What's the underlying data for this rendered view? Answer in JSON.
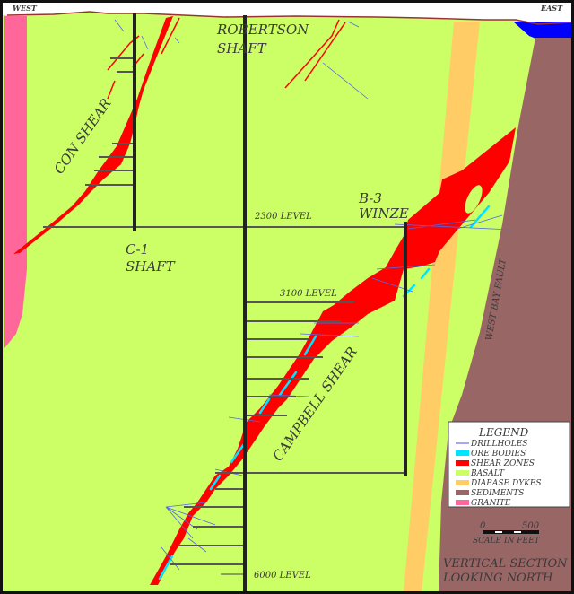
{
  "orientation": {
    "west": "WEST",
    "east": "EAST"
  },
  "shafts": {
    "robertson": [
      "ROBERTSON",
      "SHAFT"
    ],
    "c1": [
      "C-1",
      "SHAFT"
    ],
    "b3": [
      "B-3",
      "WINZE"
    ]
  },
  "shears": {
    "con": "CON SHEAR",
    "campbell": "CAMPBELL SHEAR"
  },
  "fault": "WEST BAY FAULT",
  "levels": {
    "l2300": "2300 LEVEL",
    "l3100": "3100 LEVEL",
    "l6000": "6000 LEVEL"
  },
  "legend": {
    "title": "LEGEND",
    "items": [
      {
        "label": "DRILLHOLES",
        "color": "#8888ee"
      },
      {
        "label": "ORE BODIES",
        "color": "#00e5ff"
      },
      {
        "label": "SHEAR ZONES",
        "color": "#ff0000"
      },
      {
        "label": "BASALT",
        "color": "#ccff66"
      },
      {
        "label": "DIABASE DYKES",
        "color": "#ffcc66"
      },
      {
        "label": "SEDIMENTS",
        "color": "#996666"
      },
      {
        "label": "GRANITE",
        "color": "#ff6699"
      }
    ]
  },
  "scale": {
    "min": "0",
    "max": "500",
    "label": "SCALE IN FEET"
  },
  "section": [
    "VERTICAL SECTION",
    "LOOKING NORTH"
  ],
  "colors": {
    "water": "#0000ff",
    "surface": "#993333",
    "shaft": "#222222"
  }
}
